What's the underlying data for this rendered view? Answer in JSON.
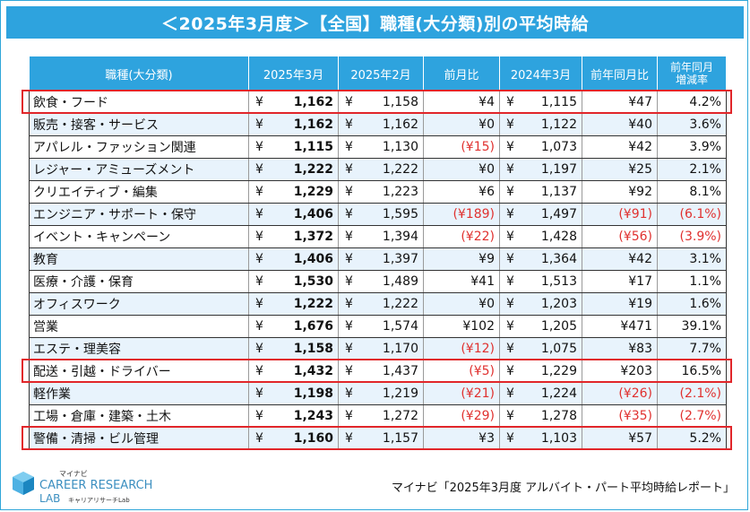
{
  "title": "＜2025年3月度＞【全国】職種(大分類)別の平均時給",
  "headers": {
    "category": "職種(大分類)",
    "mar2025": "2025年3月",
    "feb2025": "2025年2月",
    "mom": "前月比",
    "mar2024": "2024年3月",
    "yoy": "前年同月比",
    "yoy_rate_1": "前年同月",
    "yoy_rate_2": "増減率"
  },
  "yen": "¥",
  "rows": [
    {
      "name": "飲食・フード",
      "mar2025": "1,162",
      "feb2025": "1,158",
      "mom": "¥4",
      "mom_neg": false,
      "mar2024": "1,115",
      "yoy": "¥47",
      "yoy_neg": false,
      "rate": "4.2%",
      "rate_neg": false,
      "highlight": true
    },
    {
      "name": "販売・接客・サービス",
      "mar2025": "1,162",
      "feb2025": "1,162",
      "mom": "¥0",
      "mom_neg": false,
      "mar2024": "1,122",
      "yoy": "¥40",
      "yoy_neg": false,
      "rate": "3.6%",
      "rate_neg": false,
      "highlight": false
    },
    {
      "name": "アパレル・ファッション関連",
      "mar2025": "1,115",
      "feb2025": "1,130",
      "mom": "(¥15)",
      "mom_neg": true,
      "mar2024": "1,073",
      "yoy": "¥42",
      "yoy_neg": false,
      "rate": "3.9%",
      "rate_neg": false,
      "highlight": false
    },
    {
      "name": "レジャー・アミューズメント",
      "mar2025": "1,222",
      "feb2025": "1,222",
      "mom": "¥0",
      "mom_neg": false,
      "mar2024": "1,197",
      "yoy": "¥25",
      "yoy_neg": false,
      "rate": "2.1%",
      "rate_neg": false,
      "highlight": false
    },
    {
      "name": "クリエイティブ・編集",
      "mar2025": "1,229",
      "feb2025": "1,223",
      "mom": "¥6",
      "mom_neg": false,
      "mar2024": "1,137",
      "yoy": "¥92",
      "yoy_neg": false,
      "rate": "8.1%",
      "rate_neg": false,
      "highlight": false
    },
    {
      "name": "エンジニア・サポート・保守",
      "mar2025": "1,406",
      "feb2025": "1,595",
      "mom": "(¥189)",
      "mom_neg": true,
      "mar2024": "1,497",
      "yoy": "(¥91)",
      "yoy_neg": true,
      "rate": "(6.1%)",
      "rate_neg": true,
      "highlight": false
    },
    {
      "name": "イベント・キャンペーン",
      "mar2025": "1,372",
      "feb2025": "1,394",
      "mom": "(¥22)",
      "mom_neg": true,
      "mar2024": "1,428",
      "yoy": "(¥56)",
      "yoy_neg": true,
      "rate": "(3.9%)",
      "rate_neg": true,
      "highlight": false
    },
    {
      "name": "教育",
      "mar2025": "1,406",
      "feb2025": "1,397",
      "mom": "¥9",
      "mom_neg": false,
      "mar2024": "1,364",
      "yoy": "¥42",
      "yoy_neg": false,
      "rate": "3.1%",
      "rate_neg": false,
      "highlight": false
    },
    {
      "name": "医療・介護・保育",
      "mar2025": "1,530",
      "feb2025": "1,489",
      "mom": "¥41",
      "mom_neg": false,
      "mar2024": "1,513",
      "yoy": "¥17",
      "yoy_neg": false,
      "rate": "1.1%",
      "rate_neg": false,
      "highlight": false
    },
    {
      "name": "オフィスワーク",
      "mar2025": "1,222",
      "feb2025": "1,222",
      "mom": "¥0",
      "mom_neg": false,
      "mar2024": "1,203",
      "yoy": "¥19",
      "yoy_neg": false,
      "rate": "1.6%",
      "rate_neg": false,
      "highlight": false
    },
    {
      "name": "営業",
      "mar2025": "1,676",
      "feb2025": "1,574",
      "mom": "¥102",
      "mom_neg": false,
      "mar2024": "1,205",
      "yoy": "¥471",
      "yoy_neg": false,
      "rate": "39.1%",
      "rate_neg": false,
      "highlight": false
    },
    {
      "name": "エステ・理美容",
      "mar2025": "1,158",
      "feb2025": "1,170",
      "mom": "(¥12)",
      "mom_neg": true,
      "mar2024": "1,075",
      "yoy": "¥83",
      "yoy_neg": false,
      "rate": "7.7%",
      "rate_neg": false,
      "highlight": false
    },
    {
      "name": "配送・引越・ドライバー",
      "mar2025": "1,432",
      "feb2025": "1,437",
      "mom": "(¥5)",
      "mom_neg": true,
      "mar2024": "1,229",
      "yoy": "¥203",
      "yoy_neg": false,
      "rate": "16.5%",
      "rate_neg": false,
      "highlight": true
    },
    {
      "name": "軽作業",
      "mar2025": "1,198",
      "feb2025": "1,219",
      "mom": "(¥21)",
      "mom_neg": true,
      "mar2024": "1,224",
      "yoy": "(¥26)",
      "yoy_neg": true,
      "rate": "(2.1%)",
      "rate_neg": true,
      "highlight": false
    },
    {
      "name": "工場・倉庫・建築・土木",
      "mar2025": "1,243",
      "feb2025": "1,272",
      "mom": "(¥29)",
      "mom_neg": true,
      "mar2024": "1,278",
      "yoy": "(¥35)",
      "yoy_neg": true,
      "rate": "(2.7%)",
      "rate_neg": true,
      "highlight": false
    },
    {
      "name": "警備・清掃・ビル管理",
      "mar2025": "1,160",
      "feb2025": "1,157",
      "mom": "¥3",
      "mom_neg": false,
      "mar2024": "1,103",
      "yoy": "¥57",
      "yoy_neg": false,
      "rate": "5.2%",
      "rate_neg": false,
      "highlight": true
    }
  ],
  "logo": {
    "brand_top": "マイナビ",
    "line1": "CAREER RESEARCH",
    "line2": "LAB",
    "sub": "キャリアリサーチLab"
  },
  "source": "マイナビ「2025年3月度 アルバイト・パート平均時給レポート」",
  "colors": {
    "header_bg": "#2ea3de",
    "highlight": "#e1262a",
    "negative": "#e0312f",
    "stripe": "#e8f3fc"
  }
}
